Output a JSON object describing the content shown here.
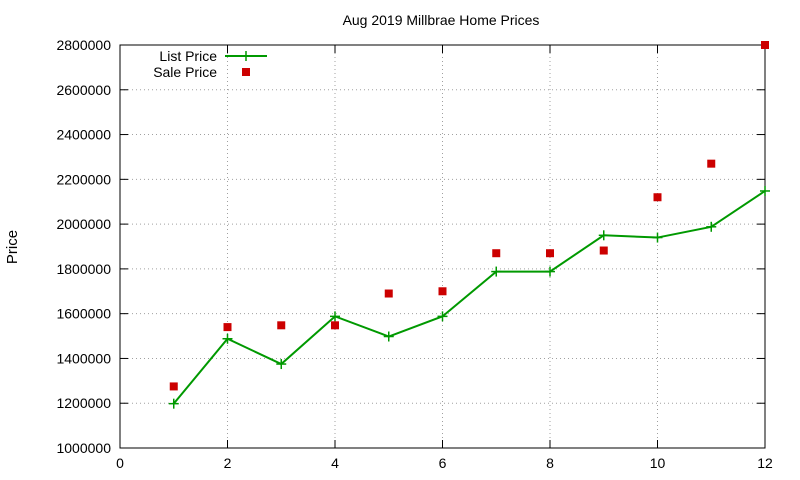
{
  "chart_data": {
    "type": "line",
    "title": "Aug 2019 Millbrae Home Prices",
    "xlabel": "",
    "ylabel": "Price",
    "xlim": [
      0,
      12
    ],
    "ylim": [
      1000000,
      2800000
    ],
    "xticks": [
      0,
      2,
      4,
      6,
      8,
      10,
      12
    ],
    "yticks": [
      1000000,
      1200000,
      1400000,
      1600000,
      1800000,
      2000000,
      2200000,
      2400000,
      2600000,
      2800000
    ],
    "grid": true,
    "legend_position": "top-left",
    "series": [
      {
        "name": "List Price",
        "style": "line-with-plus-markers",
        "color": "#009900",
        "x": [
          1,
          2,
          3,
          4,
          5,
          6,
          7,
          8,
          9,
          10,
          11,
          12
        ],
        "y": [
          1198000,
          1488000,
          1375000,
          1588000,
          1498000,
          1588000,
          1788000,
          1788000,
          1950000,
          1940000,
          1988000,
          2148000
        ]
      },
      {
        "name": "Sale Price",
        "style": "square-markers",
        "color": "#cc0000",
        "x": [
          1,
          2,
          3,
          4,
          5,
          6,
          7,
          8,
          9,
          10,
          11,
          12
        ],
        "y": [
          1275000,
          1540000,
          1548000,
          1548000,
          1690000,
          1700000,
          1870000,
          1870000,
          1882000,
          2120000,
          2270000,
          2800000
        ]
      }
    ]
  }
}
